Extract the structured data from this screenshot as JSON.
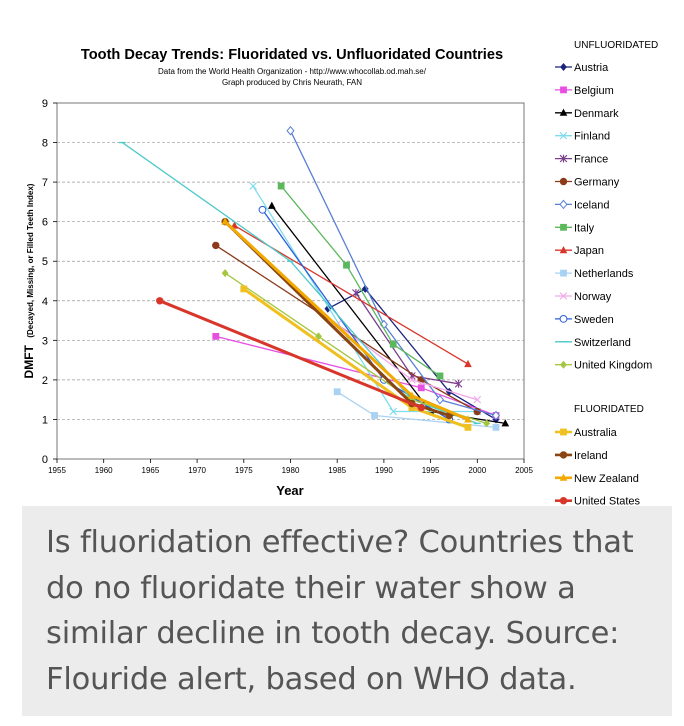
{
  "caption": "Is fluoridation effective? Countries that do no fluoridate their water show a similar decline in tooth decay. Source: Flouride alert, based on WHO data.",
  "chart_data": {
    "type": "line",
    "title": "Tooth Decay Trends:  Fluoridated vs. Unfluoridated Countries",
    "subtitle_lines": [
      "Data from the World Health Organization - http://www.whocollab.od.mah.se/",
      "Graph produced by Chris Neurath, FAN"
    ],
    "xlabel": "Year",
    "ylabel": "DMFT",
    "ylabel_note": "(Decayed, Missing, or Filled Teeth Index)",
    "xlim": [
      1955,
      2005
    ],
    "ylim": [
      0,
      9
    ],
    "xticks": [
      1955,
      1960,
      1965,
      1970,
      1975,
      1980,
      1985,
      1990,
      1995,
      2000,
      2005
    ],
    "yticks": [
      0,
      1,
      2,
      3,
      4,
      5,
      6,
      7,
      8,
      9
    ],
    "grid": "horizontal dashed",
    "legend_placement": "right",
    "legend_groups": [
      {
        "heading": "UNFLUORIDATED",
        "series_range": [
          0,
          13
        ]
      },
      {
        "heading": "FLUORIDATED",
        "series_range": [
          14,
          17
        ]
      }
    ],
    "series": [
      {
        "name": "Austria",
        "color": "#1a237e",
        "marker": "diamond",
        "points": [
          [
            1984,
            3.8
          ],
          [
            1988,
            4.3
          ],
          [
            1997,
            1.7
          ],
          [
            2002,
            1.0
          ]
        ]
      },
      {
        "name": "Belgium",
        "color": "#e64fe0",
        "marker": "square",
        "points": [
          [
            1972,
            3.1
          ],
          [
            1994,
            1.8
          ],
          [
            2002,
            1.1
          ]
        ]
      },
      {
        "name": "Denmark",
        "color": "#000000",
        "marker": "triangle",
        "points": [
          [
            1978,
            6.4
          ],
          [
            1995,
            1.2
          ],
          [
            2003,
            0.9
          ]
        ]
      },
      {
        "name": "Finland",
        "color": "#7fdcee",
        "marker": "x",
        "points": [
          [
            1976,
            6.9
          ],
          [
            1991,
            1.2
          ],
          [
            2000,
            1.2
          ]
        ]
      },
      {
        "name": "France",
        "color": "#7b3f8c",
        "marker": "star",
        "points": [
          [
            1987,
            4.2
          ],
          [
            1993,
            2.1
          ],
          [
            1998,
            1.9
          ]
        ]
      },
      {
        "name": "Germany",
        "color": "#8b3a1a",
        "marker": "circle",
        "points": [
          [
            1972,
            5.4
          ],
          [
            1994,
            2.0
          ],
          [
            2000,
            1.2
          ]
        ]
      },
      {
        "name": "Iceland",
        "color": "#5a7fd6",
        "marker": "diamond-open",
        "points": [
          [
            1980,
            8.3
          ],
          [
            1990,
            3.4
          ],
          [
            1996,
            1.5
          ],
          [
            2002,
            1.1
          ]
        ]
      },
      {
        "name": "Italy",
        "color": "#5cb85c",
        "marker": "square",
        "points": [
          [
            1979,
            6.9
          ],
          [
            1986,
            4.9
          ],
          [
            1991,
            2.9
          ],
          [
            1996,
            2.1
          ]
        ]
      },
      {
        "name": "Japan",
        "color": "#d9362b",
        "marker": "triangle",
        "points": [
          [
            1974,
            5.9
          ],
          [
            1999,
            2.4
          ]
        ]
      },
      {
        "name": "Netherlands",
        "color": "#a9d1f2",
        "marker": "square",
        "points": [
          [
            1985,
            1.7
          ],
          [
            1989,
            1.1
          ],
          [
            2002,
            0.8
          ]
        ]
      },
      {
        "name": "Norway",
        "color": "#f2a8ea",
        "marker": "x",
        "points": [
          [
            1985,
            3.4
          ],
          [
            1993,
            2.0
          ],
          [
            2000,
            1.5
          ]
        ]
      },
      {
        "name": "Sweden",
        "color": "#2b5fd9",
        "marker": "circle-open",
        "points": [
          [
            1977,
            6.3
          ],
          [
            1990,
            2.0
          ],
          [
            1997,
            1.0
          ]
        ]
      },
      {
        "name": "Switzerland",
        "color": "#4ec9c9",
        "marker": "dash",
        "points": [
          [
            1962,
            8.0
          ],
          [
            1980,
            5.0
          ],
          [
            1993,
            1.5
          ],
          [
            2000,
            0.9
          ]
        ]
      },
      {
        "name": "United Kingdom",
        "color": "#a4c640",
        "marker": "diamond",
        "points": [
          [
            1973,
            4.7
          ],
          [
            1983,
            3.1
          ],
          [
            1993,
            1.5
          ],
          [
            2001,
            0.9
          ]
        ]
      },
      {
        "name": "Australia",
        "color": "#f0c020",
        "marker": "square",
        "points": [
          [
            1975,
            4.3
          ],
          [
            1993,
            1.3
          ],
          [
            1999,
            0.8
          ]
        ]
      },
      {
        "name": "Ireland",
        "color": "#8b4513",
        "marker": "circle",
        "points": [
          [
            1973,
            6.0
          ],
          [
            1993,
            1.4
          ],
          [
            1997,
            1.1
          ]
        ]
      },
      {
        "name": "New Zealand",
        "color": "#f2a900",
        "marker": "triangle",
        "points": [
          [
            1973,
            6.0
          ],
          [
            1993,
            1.6
          ],
          [
            1999,
            1.0
          ]
        ]
      },
      {
        "name": "United States",
        "color": "#d9362b",
        "marker": "circle",
        "points": [
          [
            1966,
            4.0
          ],
          [
            1994,
            1.3
          ]
        ]
      }
    ]
  }
}
